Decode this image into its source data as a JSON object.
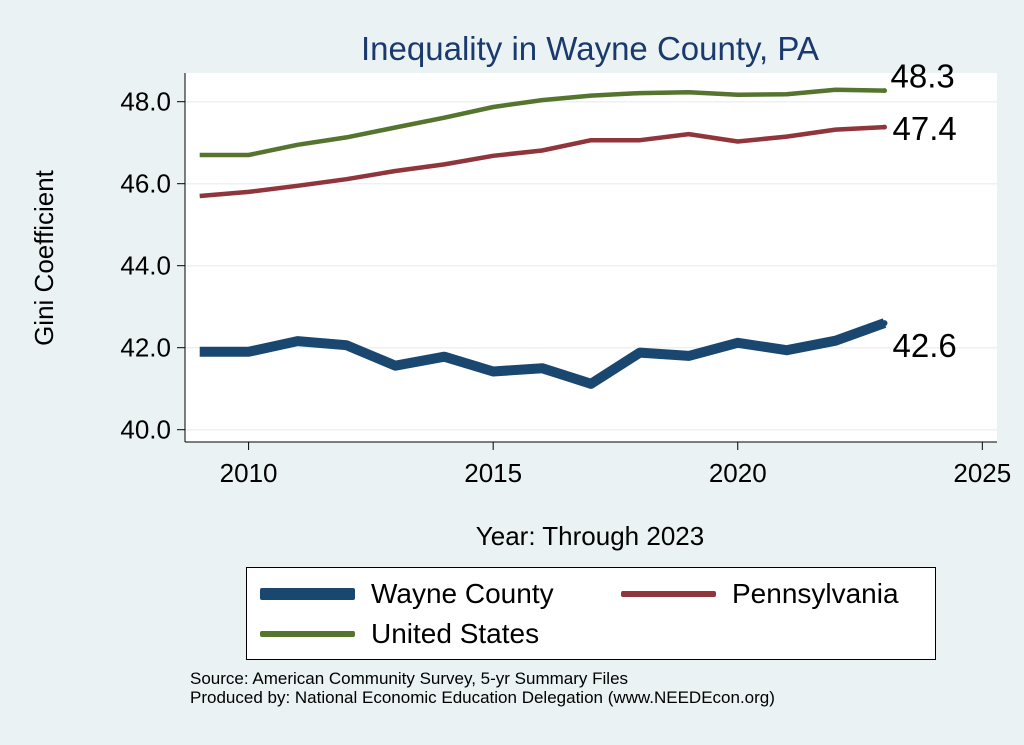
{
  "chart_data": {
    "type": "line",
    "title": "Inequality in Wayne County, PA",
    "xlabel": "Year: Through 2023",
    "ylabel": "Gini Coefficient",
    "xlim": [
      2008.7,
      2025.3
    ],
    "ylim": [
      39.7,
      48.7
    ],
    "x_ticks": [
      2010,
      2015,
      2020,
      2025
    ],
    "x_tick_labels": [
      "2010",
      "2015",
      "2020",
      "2025"
    ],
    "y_ticks": [
      40,
      42,
      44,
      46,
      48
    ],
    "y_tick_labels": [
      "40.0",
      "42.0",
      "44.0",
      "46.0",
      "48.0"
    ],
    "grid": "horizontal",
    "legend_position": "bottom",
    "x": [
      2009,
      2010,
      2011,
      2012,
      2013,
      2014,
      2015,
      2016,
      2017,
      2018,
      2019,
      2020,
      2021,
      2022,
      2023
    ],
    "series": [
      {
        "name": "Wayne County",
        "color": "#1a476f",
        "values": [
          41.9,
          41.9,
          42.16,
          42.06,
          41.56,
          41.78,
          41.42,
          41.5,
          41.12,
          41.88,
          41.8,
          42.12,
          41.94,
          42.17,
          42.6
        ],
        "end_label": "42.6"
      },
      {
        "name": "Pennsylvania",
        "color": "#90353b",
        "values": [
          45.7,
          45.8,
          45.95,
          46.11,
          46.31,
          46.47,
          46.68,
          46.81,
          47.06,
          47.06,
          47.21,
          47.03,
          47.15,
          47.32,
          47.38
        ],
        "end_label": "47.4"
      },
      {
        "name": "United States",
        "color": "#55752f",
        "values": [
          46.7,
          46.7,
          46.95,
          47.13,
          47.37,
          47.61,
          47.87,
          48.04,
          48.15,
          48.21,
          48.23,
          48.17,
          48.18,
          48.29,
          48.27
        ],
        "end_label": "48.3"
      }
    ]
  },
  "source": {
    "line1": "Source: American Community Survey, 5-yr Summary Files",
    "line2": "Produced by: National Economic Education Delegation (www.NEEDEcon.org)"
  }
}
